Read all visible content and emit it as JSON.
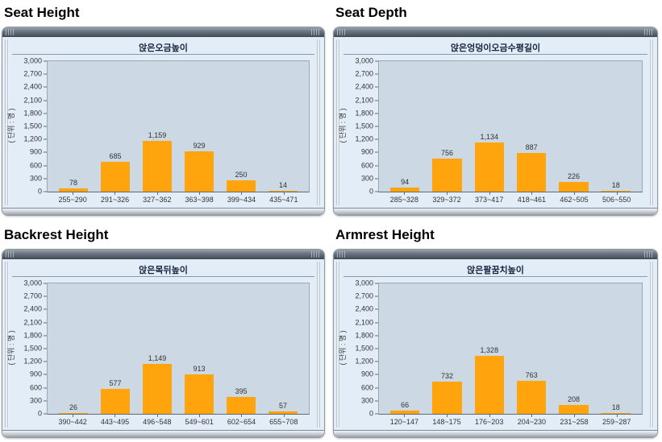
{
  "y_axis": {
    "label": "( 단위 : 명 )",
    "ticks": [
      "0",
      "300",
      "600",
      "900",
      "1,200",
      "1,500",
      "1,800",
      "2,100",
      "2,400",
      "2,700",
      "3,000"
    ],
    "max": 3000,
    "step": 300
  },
  "colors": {
    "bar": "#ffa40d",
    "panel_body": "#e3edf8",
    "plot_bg": "#ccd8e3",
    "title_text": "#17233e",
    "heading_text": "#000000"
  },
  "chart_data": [
    {
      "type": "bar",
      "heading": "Seat Height",
      "title": "앉은오금높이",
      "categories": [
        "255~290",
        "291~326",
        "327~362",
        "363~398",
        "399~434",
        "435~471"
      ],
      "values": [
        78,
        685,
        1159,
        929,
        250,
        14
      ],
      "value_labels": [
        "78",
        "685",
        "1,159",
        "929",
        "250",
        "14"
      ],
      "ylabel": "( 단위 : 명 )",
      "ylim": [
        0,
        3000
      ],
      "grid": false,
      "legend": "none"
    },
    {
      "type": "bar",
      "heading": "Seat Depth",
      "title": "앉은엉덩이오금수평길이",
      "categories": [
        "285~328",
        "329~372",
        "373~417",
        "418~461",
        "462~505",
        "506~550"
      ],
      "values": [
        94,
        756,
        1134,
        887,
        226,
        18
      ],
      "value_labels": [
        "94",
        "756",
        "1,134",
        "887",
        "226",
        "18"
      ],
      "ylabel": "( 단위 : 명 )",
      "ylim": [
        0,
        3000
      ],
      "grid": false,
      "legend": "none"
    },
    {
      "type": "bar",
      "heading": "Backrest Height",
      "title": "앉은목뒤높이",
      "categories": [
        "390~442",
        "443~495",
        "496~548",
        "549~601",
        "602~654",
        "655~708"
      ],
      "values": [
        26,
        577,
        1149,
        913,
        395,
        57
      ],
      "value_labels": [
        "26",
        "577",
        "1,149",
        "913",
        "395",
        "57"
      ],
      "ylabel": "( 단위 : 명 )",
      "ylim": [
        0,
        3000
      ],
      "grid": false,
      "legend": "none"
    },
    {
      "type": "bar",
      "heading": "Armrest Height",
      "title": "앉은팔꿈치높이",
      "categories": [
        "120~147",
        "148~175",
        "176~203",
        "204~230",
        "231~258",
        "259~287"
      ],
      "values": [
        66,
        732,
        1328,
        763,
        208,
        18
      ],
      "value_labels": [
        "66",
        "732",
        "1,328",
        "763",
        "208",
        "18"
      ],
      "ylabel": "( 단위 : 명 )",
      "ylim": [
        0,
        3000
      ],
      "grid": false,
      "legend": "none"
    }
  ]
}
